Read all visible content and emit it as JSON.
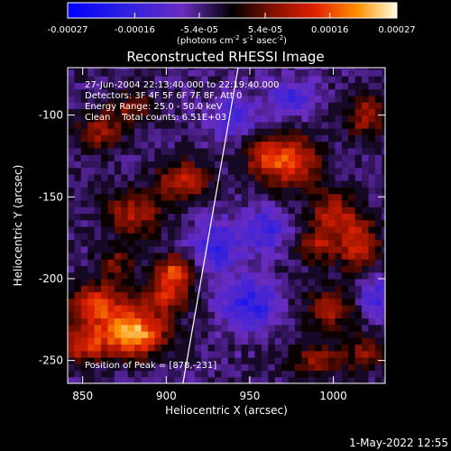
{
  "chart_data": {
    "type": "heatmap",
    "title": "Reconstructed RHESSI Image",
    "xlabel": "Heliocentric X (arcsec)",
    "ylabel": "Heliocentric Y (arcsec)",
    "xlim": [
      841,
      1031
    ],
    "ylim": [
      -264,
      -71
    ],
    "x_ticks": [
      850,
      900,
      950,
      1000
    ],
    "y_ticks": [
      -100,
      -150,
      -200,
      -250
    ],
    "colorbar": {
      "label": "(photons cm",
      "label_exp1": "-2",
      "label_mid": " s",
      "label_exp2": "-1",
      "label_tail": " asec",
      "label_exp3": "-2",
      "label_close": ")",
      "range": [
        -0.00027,
        0.00027
      ],
      "tick_values": [
        -0.00027,
        -0.00016,
        -5.4e-05,
        5.4e-05,
        0.00016,
        0.00027
      ],
      "tick_labels": [
        "-0.00027",
        "-0.00016",
        "-5.4e-05",
        "5.4e-05",
        "0.00016",
        "0.00027"
      ]
    },
    "annotations": {
      "time_range": "27-Jun-2004 22:13:40.000 to 22:19:40.000",
      "detectors": "Detectors: 3F 4F 5F 6F 7F 8F, Att 0",
      "energy": "Energy Range: 25.0 - 50.0 keV",
      "clean": "Clean    Total counts: 6.51E+03",
      "peak": "Position of Peak = [878,-231]"
    },
    "limb_line": {
      "x": [
        910,
        943
      ],
      "y": [
        -264,
        -71
      ]
    },
    "blobs": [
      {
        "x": 880,
        "y": -233,
        "sx": 14,
        "sy": 10,
        "v": 0.00027
      },
      {
        "x": 858,
        "y": -215,
        "sx": 12,
        "sy": 9,
        "v": 0.00018
      },
      {
        "x": 850,
        "y": -240,
        "sx": 10,
        "sy": 8,
        "v": 0.00016
      },
      {
        "x": 900,
        "y": -210,
        "sx": 10,
        "sy": 8,
        "v": 0.00015
      },
      {
        "x": 880,
        "y": -160,
        "sx": 12,
        "sy": 10,
        "v": 0.00014
      },
      {
        "x": 910,
        "y": -140,
        "sx": 11,
        "sy": 9,
        "v": 0.00016
      },
      {
        "x": 905,
        "y": -195,
        "sx": 8,
        "sy": 7,
        "v": 0.00018
      },
      {
        "x": 860,
        "y": -110,
        "sx": 10,
        "sy": 9,
        "v": 0.00012
      },
      {
        "x": 880,
        "y": -95,
        "sx": 9,
        "sy": 7,
        "v": 0.0001
      },
      {
        "x": 975,
        "y": -128,
        "sx": 12,
        "sy": 12,
        "v": 0.00018
      },
      {
        "x": 958,
        "y": -125,
        "sx": 8,
        "sy": 8,
        "v": 0.00013
      },
      {
        "x": 1000,
        "y": -160,
        "sx": 10,
        "sy": 10,
        "v": 0.00014
      },
      {
        "x": 1015,
        "y": -180,
        "sx": 9,
        "sy": 12,
        "v": 0.00016
      },
      {
        "x": 990,
        "y": -180,
        "sx": 8,
        "sy": 8,
        "v": 0.00012
      },
      {
        "x": 1000,
        "y": -218,
        "sx": 11,
        "sy": 9,
        "v": 0.00014
      },
      {
        "x": 1020,
        "y": -100,
        "sx": 9,
        "sy": 10,
        "v": 0.00013
      },
      {
        "x": 990,
        "y": -250,
        "sx": 12,
        "sy": 7,
        "v": 0.00012
      },
      {
        "x": 1020,
        "y": -245,
        "sx": 8,
        "sy": 8,
        "v": 0.00011
      },
      {
        "x": 870,
        "y": -190,
        "sx": 8,
        "sy": 7,
        "v": 0.0001
      },
      {
        "x": 960,
        "y": -170,
        "sx": 9,
        "sy": 9,
        "v": -0.00012
      },
      {
        "x": 950,
        "y": -215,
        "sx": 12,
        "sy": 10,
        "v": -0.00014
      },
      {
        "x": 930,
        "y": -180,
        "sx": 10,
        "sy": 12,
        "v": -0.00012
      },
      {
        "x": 1025,
        "y": -210,
        "sx": 10,
        "sy": 10,
        "v": -0.0001
      },
      {
        "x": 940,
        "y": -100,
        "sx": 10,
        "sy": 9,
        "v": -0.0001
      },
      {
        "x": 975,
        "y": -90,
        "sx": 9,
        "sy": 8,
        "v": -0.00011
      }
    ],
    "noise_seed": 7
  },
  "footer": {
    "date": "1-May-2022 12:55"
  }
}
